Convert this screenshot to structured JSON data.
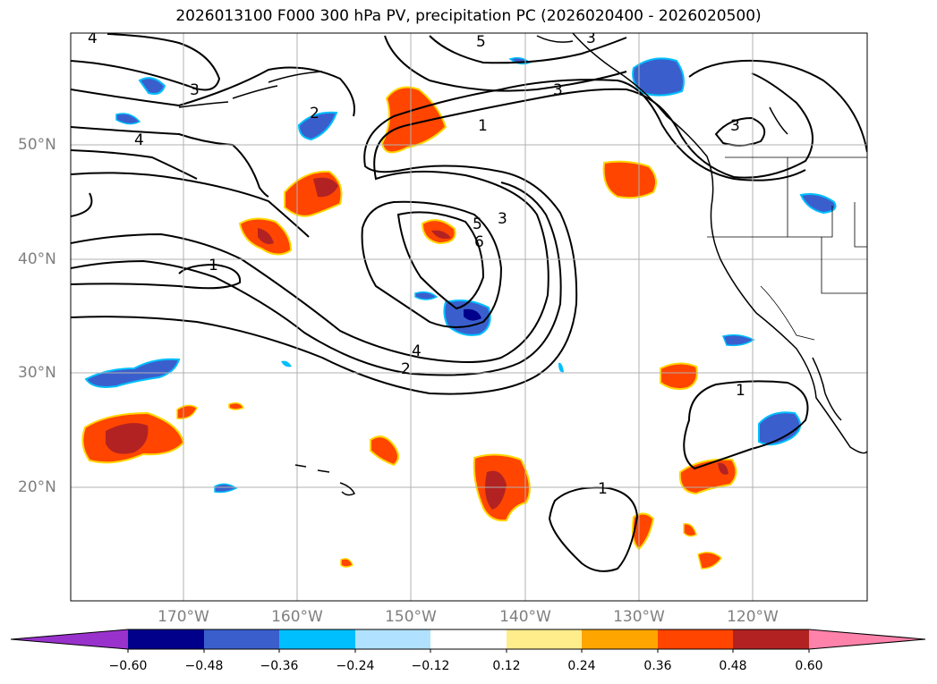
{
  "title": "2026013100 F000 300 hPa PV, precipitation PC (2026020400 - 2026020500)",
  "latitude_labels": [
    "50°N",
    "40°N",
    "30°N",
    "20°N"
  ],
  "longitude_labels": [
    "170°W",
    "160°W",
    "150°W",
    "140°W",
    "130°W",
    "120°W"
  ],
  "contour_labels": [
    "4",
    "3",
    "5",
    "3",
    "2",
    "4",
    "1",
    "3",
    "3",
    "5",
    "3",
    "6",
    "1",
    "4",
    "2",
    "1",
    "1"
  ],
  "colorbar": {
    "tick_labels": [
      "−0.60",
      "−0.48",
      "−0.36",
      "−0.24",
      "−0.12",
      "0.12",
      "0.24",
      "0.36",
      "0.48",
      "0.60"
    ],
    "colors": [
      "#9932cc",
      "#00008b",
      "#3a5fcd",
      "#00bfff",
      "#b0e2ff",
      "#ffffff",
      "#ffec8b",
      "#ffa500",
      "#ff4500",
      "#b22222",
      "#ff82ab"
    ]
  }
}
